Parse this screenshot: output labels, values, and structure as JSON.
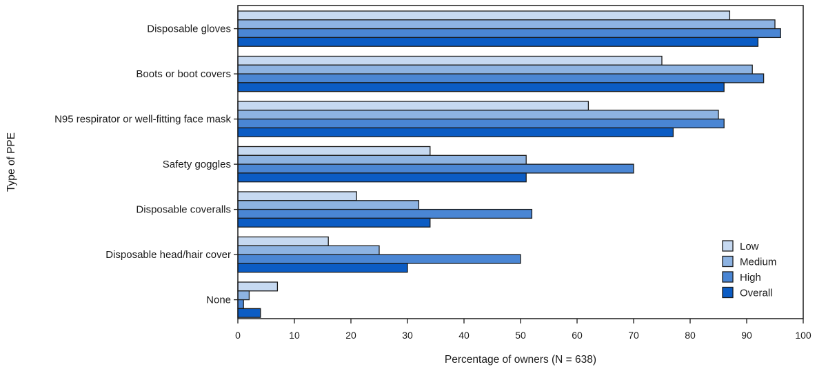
{
  "chart_data": {
    "type": "bar",
    "orientation": "horizontal",
    "title": "",
    "xlabel": "Percentage of owners (N = 638)",
    "ylabel": "Type of PPE",
    "xlim": [
      0,
      100
    ],
    "xticks": [
      0,
      10,
      20,
      30,
      40,
      50,
      60,
      70,
      80,
      90,
      100
    ],
    "categories": [
      "Disposable gloves",
      "Boots or boot covers",
      "N95 respirator or well-fitting face mask",
      "Safety goggles",
      "Disposable coveralls",
      "Disposable head/hair cover",
      "None"
    ],
    "series": [
      {
        "name": "Low",
        "color": "#c6d9f1",
        "values": [
          87,
          75,
          62,
          34,
          21,
          16,
          7
        ]
      },
      {
        "name": "Medium",
        "color": "#8db3e2",
        "values": [
          95,
          91,
          85,
          51,
          32,
          25,
          2
        ]
      },
      {
        "name": "High",
        "color": "#4a86d4",
        "values": [
          96,
          93,
          86,
          70,
          52,
          50,
          1
        ]
      },
      {
        "name": "Overall",
        "color": "#0b5cc4",
        "values": [
          92,
          86,
          77,
          51,
          34,
          30,
          4
        ]
      }
    ],
    "legend": "bottom-right",
    "grid": false
  }
}
